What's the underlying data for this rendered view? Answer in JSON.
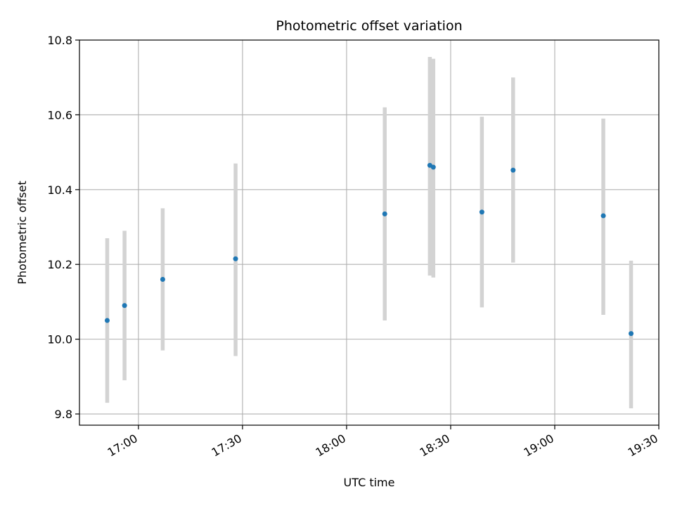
{
  "chart_data": {
    "type": "scatter",
    "title": "Photometric offset variation",
    "xlabel": "UTC time",
    "ylabel": "Photometric offset",
    "x_unit": "UTC time",
    "xlim": [
      "16:43",
      "19:30"
    ],
    "ylim": [
      9.77,
      10.8
    ],
    "x_ticks": [
      "17:00",
      "17:30",
      "18:00",
      "18:30",
      "19:00",
      "19:30"
    ],
    "y_ticks": [
      "9.8",
      "10.0",
      "10.2",
      "10.4",
      "10.6",
      "10.8"
    ],
    "grid": true,
    "point_color": "#1f77b4",
    "errorbar_color": "#d3d3d3",
    "series": [
      {
        "points": [
          {
            "time": "16:51",
            "y": 10.05,
            "err_low": 9.83,
            "err_high": 10.27
          },
          {
            "time": "16:56",
            "y": 10.09,
            "err_low": 9.89,
            "err_high": 10.29
          },
          {
            "time": "17:07",
            "y": 10.16,
            "err_low": 9.97,
            "err_high": 10.35
          },
          {
            "time": "17:28",
            "y": 10.215,
            "err_low": 9.955,
            "err_high": 10.47
          },
          {
            "time": "18:11",
            "y": 10.335,
            "err_low": 10.05,
            "err_high": 10.62
          },
          {
            "time": "18:24",
            "y": 10.465,
            "err_low": 10.17,
            "err_high": 10.755
          },
          {
            "time": "18:25",
            "y": 10.46,
            "err_low": 10.165,
            "err_high": 10.75
          },
          {
            "time": "18:39",
            "y": 10.34,
            "err_low": 10.085,
            "err_high": 10.595
          },
          {
            "time": "18:48",
            "y": 10.452,
            "err_low": 10.205,
            "err_high": 10.7
          },
          {
            "time": "19:14",
            "y": 10.33,
            "err_low": 10.065,
            "err_high": 10.59
          },
          {
            "time": "19:22",
            "y": 10.015,
            "err_low": 9.815,
            "err_high": 10.21
          }
        ]
      }
    ]
  }
}
